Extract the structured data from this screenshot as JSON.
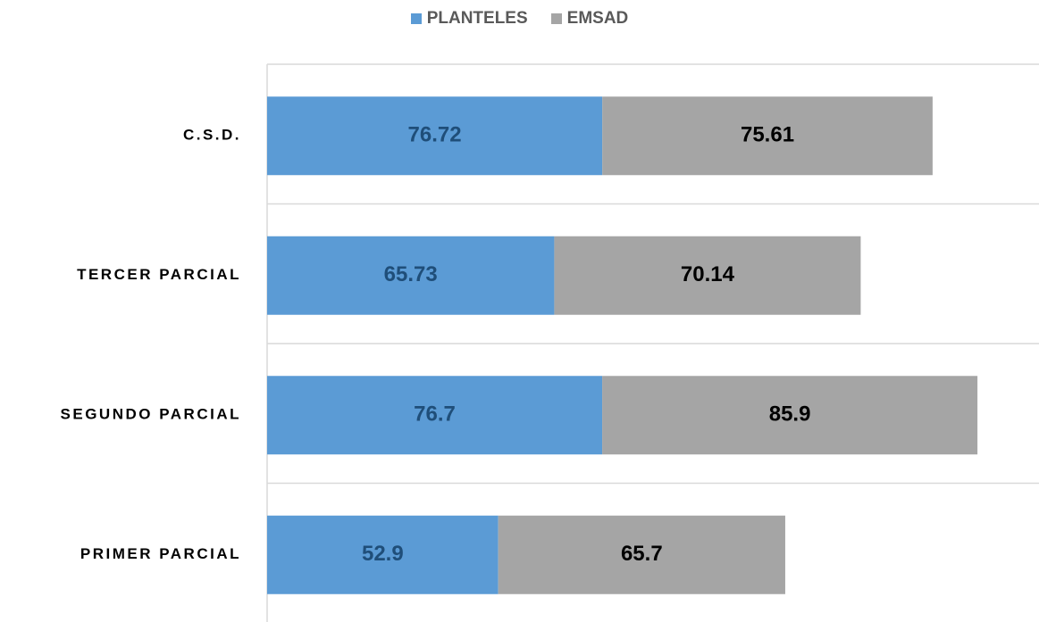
{
  "chart_data": {
    "type": "bar",
    "orientation": "horizontal",
    "stacked": true,
    "categories": [
      "C.S.D.",
      "TERCER PARCIAL",
      "SEGUNDO PARCIAL",
      "PRIMER PARCIAL"
    ],
    "series": [
      {
        "name": "PLANTELES",
        "values": [
          76.72,
          65.73,
          76.7,
          52.9
        ],
        "labels": [
          "76.72",
          "65.73",
          "76.7",
          "52.9"
        ],
        "color": "#5b9bd5",
        "label_color": "#1f4e79"
      },
      {
        "name": "EMSAD",
        "values": [
          75.61,
          70.14,
          85.9,
          65.7
        ],
        "labels": [
          "75.61",
          "70.14",
          "85.9",
          "65.7"
        ],
        "color": "#a5a5a5",
        "label_color": "#000000"
      }
    ],
    "xlim": [
      0,
      176
    ],
    "xaxis_visible": false,
    "grid": "horizontal separators between categories",
    "legend_position": "top-center",
    "title": "",
    "xlabel": "",
    "ylabel": ""
  }
}
